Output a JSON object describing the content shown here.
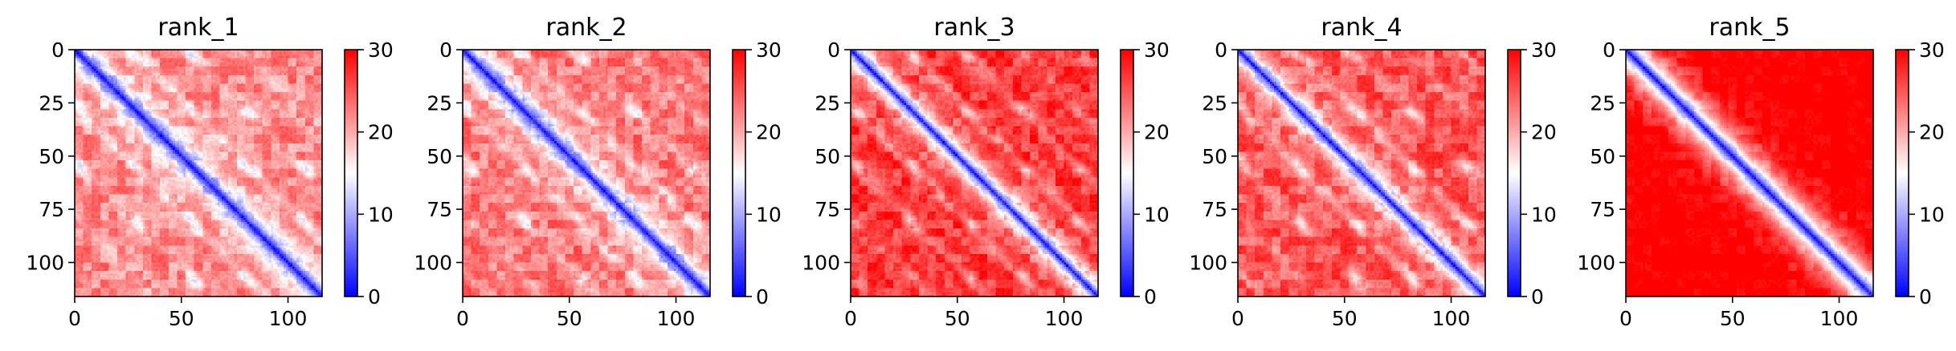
{
  "chart_data": [
    {
      "type": "heatmap",
      "title": "rank_1",
      "matrix_size": 116,
      "xlim": [
        0,
        116
      ],
      "ylim": [
        116,
        0
      ],
      "x_ticks": [
        0,
        50,
        100
      ],
      "y_ticks": [
        0,
        25,
        50,
        75,
        100
      ],
      "colorbar": {
        "range": [
          0,
          30
        ],
        "ticks": [
          0,
          10,
          20,
          30
        ],
        "colors": [
          "#0000ff",
          "#ffffff",
          "#ff0000"
        ]
      },
      "background_level": 22,
      "diagonal_min": 1,
      "diagonal_width": 7,
      "contact_period": 26,
      "contact_phase": 3,
      "contact_bands": [
        {
          "offset": 26,
          "strength": 11,
          "width": 4
        },
        {
          "offset": 52,
          "strength": 7,
          "width": 4
        },
        {
          "offset": 78,
          "strength": 5,
          "width": 4
        },
        {
          "offset": 104,
          "strength": 3,
          "width": 4
        }
      ],
      "texture_amplitude": 3
    },
    {
      "type": "heatmap",
      "title": "rank_2",
      "matrix_size": 116,
      "xlim": [
        0,
        116
      ],
      "ylim": [
        116,
        0
      ],
      "x_ticks": [
        0,
        50,
        100
      ],
      "y_ticks": [
        0,
        25,
        50,
        75,
        100
      ],
      "colorbar": {
        "range": [
          0,
          30
        ],
        "ticks": [
          0,
          10,
          20,
          30
        ],
        "colors": [
          "#0000ff",
          "#ffffff",
          "#ff0000"
        ]
      },
      "background_level": 23,
      "diagonal_min": 1,
      "diagonal_width": 7,
      "contact_period": 26,
      "contact_phase": 3,
      "contact_bands": [
        {
          "offset": 26,
          "strength": 11,
          "width": 4
        },
        {
          "offset": 52,
          "strength": 7,
          "width": 4
        },
        {
          "offset": 78,
          "strength": 5,
          "width": 4
        },
        {
          "offset": 104,
          "strength": 3,
          "width": 4
        }
      ],
      "texture_amplitude": 3
    },
    {
      "type": "heatmap",
      "title": "rank_3",
      "matrix_size": 116,
      "xlim": [
        0,
        116
      ],
      "ylim": [
        116,
        0
      ],
      "x_ticks": [
        0,
        50,
        100
      ],
      "y_ticks": [
        0,
        25,
        50,
        75,
        100
      ],
      "colorbar": {
        "range": [
          0,
          30
        ],
        "ticks": [
          0,
          10,
          20,
          30
        ],
        "colors": [
          "#0000ff",
          "#ffffff",
          "#ff0000"
        ]
      },
      "background_level": 27,
      "diagonal_min": 1,
      "diagonal_width": 6,
      "contact_period": 26,
      "contact_phase": 3,
      "contact_bands": [
        {
          "offset": 26,
          "strength": 13,
          "width": 4
        },
        {
          "offset": 52,
          "strength": 9,
          "width": 4
        },
        {
          "offset": 78,
          "strength": 6,
          "width": 4
        },
        {
          "offset": 104,
          "strength": 3,
          "width": 4
        }
      ],
      "texture_amplitude": 3
    },
    {
      "type": "heatmap",
      "title": "rank_4",
      "matrix_size": 116,
      "xlim": [
        0,
        116
      ],
      "ylim": [
        116,
        0
      ],
      "x_ticks": [
        0,
        50,
        100
      ],
      "y_ticks": [
        0,
        25,
        50,
        75,
        100
      ],
      "colorbar": {
        "range": [
          0,
          30
        ],
        "ticks": [
          0,
          10,
          20,
          30
        ],
        "colors": [
          "#0000ff",
          "#ffffff",
          "#ff0000"
        ]
      },
      "background_level": 25,
      "diagonal_min": 1,
      "diagonal_width": 6,
      "contact_period": 26,
      "contact_phase": 3,
      "contact_bands": [
        {
          "offset": 26,
          "strength": 12,
          "width": 4
        },
        {
          "offset": 52,
          "strength": 8,
          "width": 4
        },
        {
          "offset": 78,
          "strength": 5,
          "width": 4
        },
        {
          "offset": 104,
          "strength": 3,
          "width": 4
        }
      ],
      "texture_amplitude": 3
    },
    {
      "type": "heatmap",
      "title": "rank_5",
      "matrix_size": 116,
      "xlim": [
        0,
        116
      ],
      "ylim": [
        116,
        0
      ],
      "x_ticks": [
        0,
        50,
        100
      ],
      "y_ticks": [
        0,
        25,
        50,
        75,
        100
      ],
      "colorbar": {
        "range": [
          0,
          30
        ],
        "ticks": [
          0,
          10,
          20,
          30
        ],
        "colors": [
          "#0000ff",
          "#ffffff",
          "#ff0000"
        ]
      },
      "background_level": 31,
      "diagonal_min": 1,
      "diagonal_width": 9,
      "contact_period": 26,
      "contact_phase": 3,
      "contact_bands": [],
      "texture_amplitude": 2
    }
  ]
}
